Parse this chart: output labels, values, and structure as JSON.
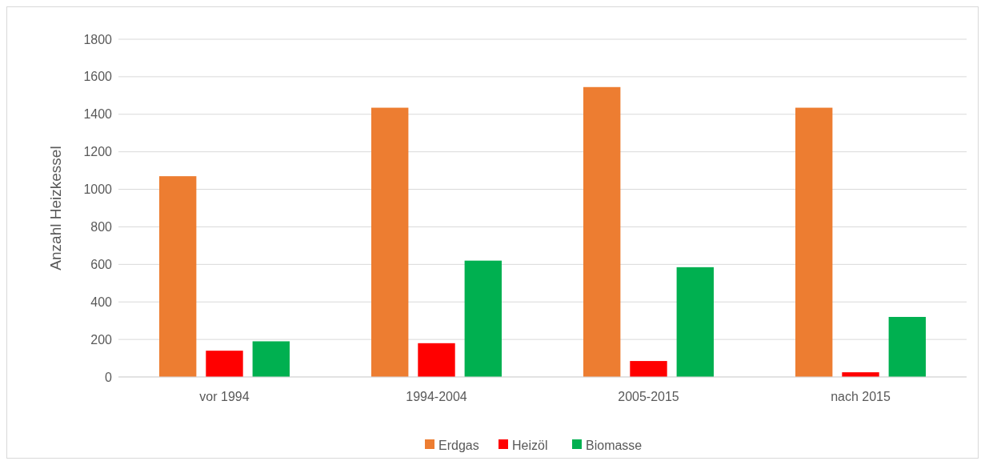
{
  "chart_data": {
    "type": "bar",
    "ylabel": "Anzahl Heizkessel",
    "categories": [
      "vor 1994",
      "1994-2004",
      "2005-2015",
      "nach 2015"
    ],
    "series": [
      {
        "name": "Erdgas",
        "color": "#ed7d31",
        "values": [
          1070,
          1435,
          1545,
          1435
        ]
      },
      {
        "name": "Heizöl",
        "color": "#ff0000",
        "values": [
          140,
          180,
          85,
          25
        ]
      },
      {
        "name": "Biomasse",
        "color": "#00b050",
        "values": [
          190,
          620,
          585,
          320
        ]
      }
    ],
    "ylim": [
      0,
      1800
    ],
    "yticks": [
      0,
      200,
      400,
      600,
      800,
      1000,
      1200,
      1400,
      1600,
      1800
    ],
    "grid": "y",
    "legend": "bottom"
  }
}
